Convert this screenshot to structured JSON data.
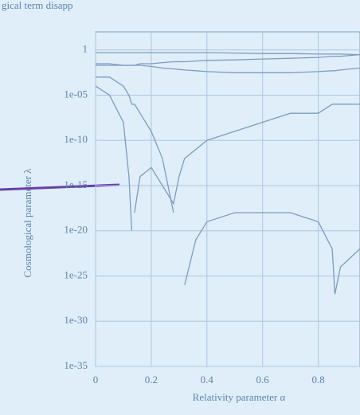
{
  "chart_data": {
    "type": "line",
    "title": "gical term disapp",
    "x_label": "Relativity parameter α",
    "y_label": "Cosmological parameter λ",
    "x": [
      0,
      0.05,
      0.1,
      0.12,
      0.13,
      0.14,
      0.16,
      0.2,
      0.24,
      0.28,
      0.3,
      0.32,
      0.36,
      0.4,
      0.5,
      0.6,
      0.7,
      0.8,
      0.85,
      0.86,
      0.88,
      0.95
    ],
    "series": [
      {
        "color": "#7d9cc0",
        "values": [
          0.5,
          0.5,
          0.5,
          0.5,
          0.5,
          0.5,
          0.5,
          0.5,
          0.5,
          0.5,
          0.5,
          0.5,
          0.5,
          0.5,
          0.45,
          0.4,
          0.4,
          0.35,
          0.35,
          0.35,
          0.35,
          0.3
        ]
      },
      {
        "color": "#7d9cc0",
        "values": [
          0.02,
          0.02,
          0.02,
          0.02,
          0.02,
          0.02,
          0.03,
          0.03,
          0.04,
          0.05,
          0.05,
          0.05,
          0.06,
          0.07,
          0.08,
          0.1,
          0.12,
          0.15,
          0.2,
          0.2,
          0.2,
          0.3
        ]
      },
      {
        "color": "#7d9cc0",
        "values": [
          0.03,
          0.03,
          0.02,
          0.02,
          0.02,
          0.02,
          0.02,
          0.015,
          0.01,
          0.008,
          0.007,
          0.006,
          0.005,
          0.004,
          0.003,
          0.003,
          0.003,
          0.004,
          0.005,
          0.005,
          0.006,
          0.01
        ]
      },
      {
        "color": "#7d9cc0",
        "values": [
          0.0001,
          1e-05,
          1e-08,
          1e-14,
          1e-20,
          null,
          null,
          null,
          null,
          null,
          null,
          null,
          null,
          null,
          null,
          null,
          null,
          null,
          null,
          null,
          null,
          null
        ]
      },
      {
        "color": "#7d9cc0",
        "values": [
          null,
          null,
          null,
          null,
          null,
          1e-18,
          1e-14,
          1e-13,
          1e-15,
          1e-17,
          1e-14,
          1e-12,
          1e-11,
          1e-10,
          1e-09,
          1e-08,
          1e-07,
          1e-07,
          1e-06,
          1e-06,
          1e-06,
          1e-06
        ]
      },
      {
        "color": "#7d9cc0",
        "values": [
          0.001,
          0.001,
          0.0001,
          1e-05,
          1e-06,
          1e-06,
          1e-07,
          1e-09,
          1e-12,
          1e-18,
          null,
          null,
          null,
          null,
          null,
          null,
          null,
          null,
          null,
          null,
          null,
          null
        ]
      },
      {
        "color": "#7d9cc0",
        "values": [
          null,
          null,
          null,
          null,
          null,
          null,
          null,
          null,
          null,
          null,
          null,
          1e-26,
          1e-21,
          1e-19,
          1e-18,
          1e-18,
          1e-18,
          1e-19,
          1e-22,
          1e-27,
          1e-24,
          1e-22
        ]
      }
    ],
    "xlim": [
      0,
      0.95
    ],
    "ylim": [
      1e-35,
      100
    ],
    "log_y": true,
    "grid": true,
    "xticks": [
      0,
      0.2,
      0.4,
      0.6,
      0.8
    ],
    "yticks": [
      1,
      {
        "value": 1e-05,
        "label": "1e-05"
      },
      {
        "value": 1e-10,
        "label": "1e-10"
      },
      {
        "value": 1e-15,
        "label": "1e-15"
      },
      {
        "value": 1e-20,
        "label": "1e-20"
      },
      {
        "value": 1e-25,
        "label": "1e-25"
      },
      {
        "value": 1e-30,
        "label": "1e-30"
      },
      {
        "value": 1e-35,
        "label": "1e-35"
      }
    ]
  }
}
